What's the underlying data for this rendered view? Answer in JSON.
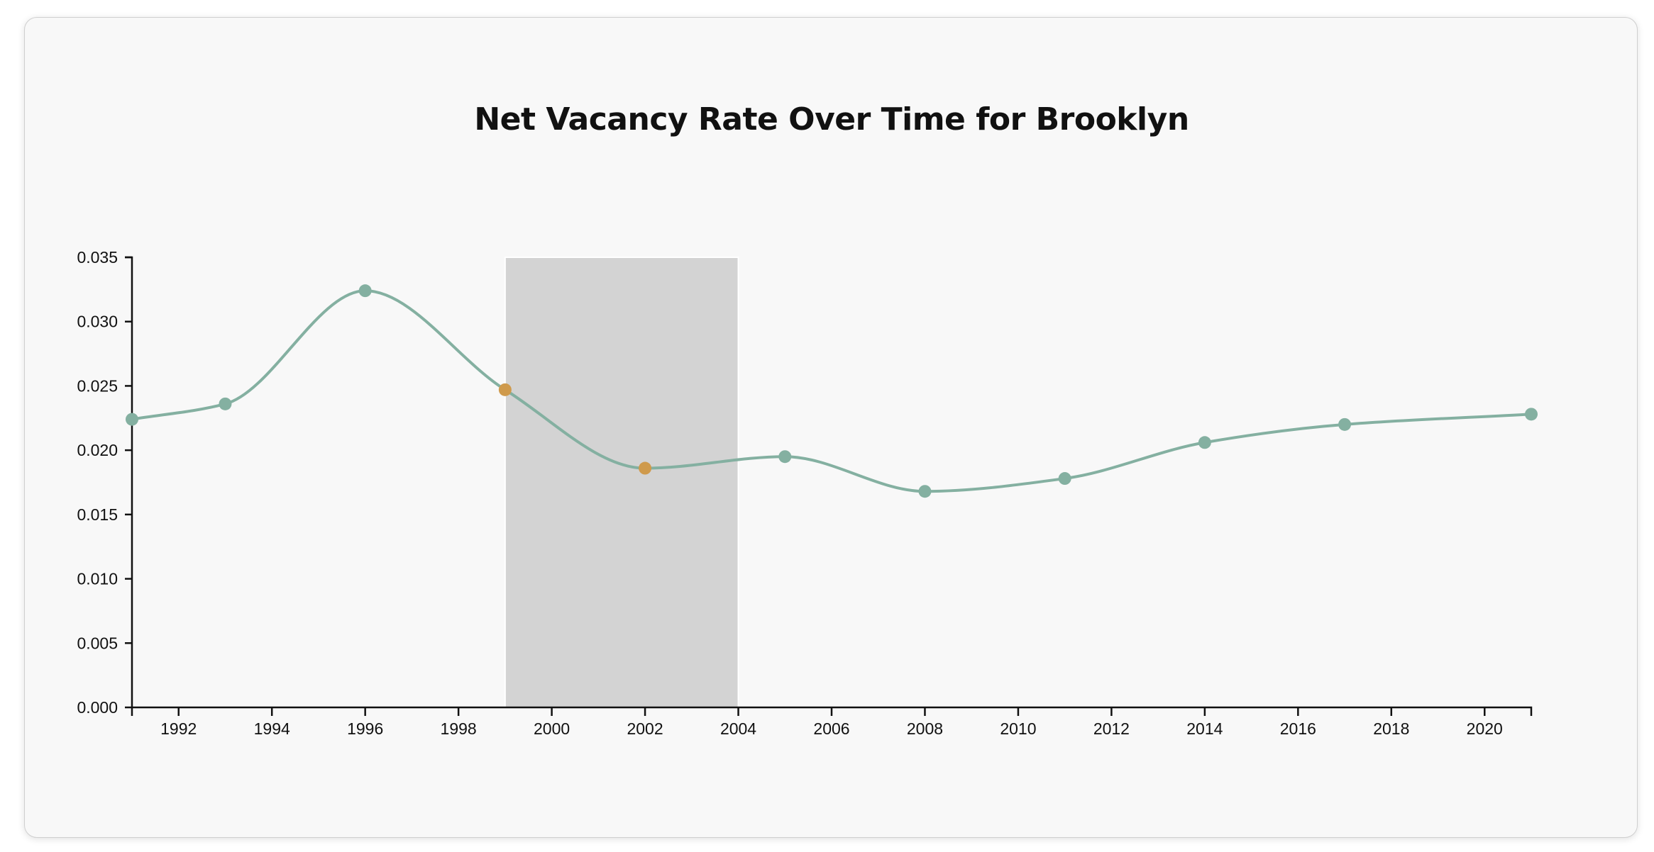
{
  "chart_data": {
    "type": "line",
    "title": "Net Vacancy Rate Over Time for Brooklyn",
    "xlabel": "",
    "ylabel": "",
    "xlim": [
      1991,
      2021
    ],
    "ylim": [
      0,
      0.035
    ],
    "x_ticks": [
      "1992",
      "1994",
      "1996",
      "1998",
      "2000",
      "2002",
      "2004",
      "2006",
      "2008",
      "2010",
      "2012",
      "2014",
      "2016",
      "2018",
      "2020"
    ],
    "y_ticks": [
      "0.000",
      "0.005",
      "0.010",
      "0.015",
      "0.020",
      "0.025",
      "0.030",
      "0.035"
    ],
    "grid": false,
    "curve": "smooth",
    "series": [
      {
        "x": [
          1991,
          1993,
          1996,
          1999,
          2002,
          2005,
          2008,
          2011,
          2014,
          2017,
          2021
        ],
        "values": [
          0.0224,
          0.0236,
          0.0324,
          0.0247,
          0.0186,
          0.0195,
          0.0168,
          0.0178,
          0.0206,
          0.022,
          0.0228
        ]
      }
    ],
    "highlight_range": [
      1999,
      2004
    ],
    "highlighted_points": [
      1999,
      2002
    ],
    "colors": {
      "line": "#84b0a1",
      "point": "#84b0a1",
      "highlight_point": "#cf9a4c",
      "highlight_band": "#d3d3d3"
    }
  }
}
